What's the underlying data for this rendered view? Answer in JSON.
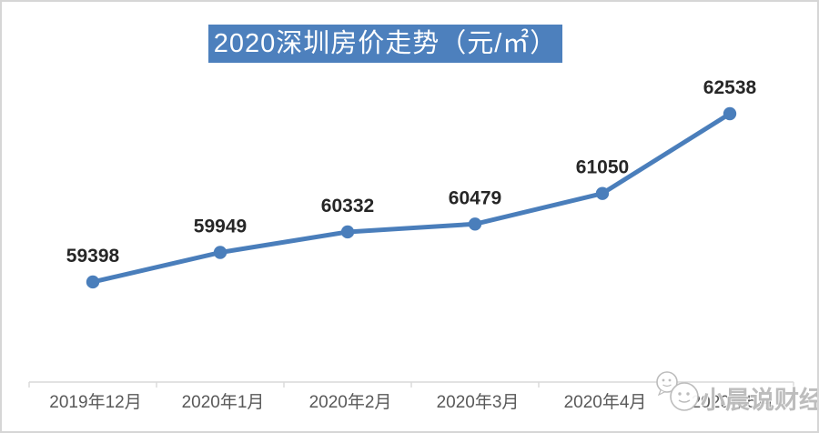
{
  "title": {
    "text": "2020深圳房价走势（元/㎡）"
  },
  "chart_data": {
    "type": "line",
    "title": "2020深圳房价走势（元/㎡）",
    "categories": [
      "2019年12月",
      "2020年1月",
      "2020年2月",
      "2020年3月",
      "2020年4月",
      "2020年5月"
    ],
    "series": [
      {
        "name": "深圳房价",
        "values": [
          59398,
          59949,
          60332,
          60479,
          61050,
          62538
        ]
      }
    ],
    "data_labels": [
      59398,
      59949,
      60332,
      60479,
      61050,
      62538
    ],
    "xlabel": "",
    "ylabel": "",
    "ylim": [
      57530,
      63530
    ],
    "grid": false,
    "legend_position": "none",
    "colors": {
      "line": "#4a7ebb",
      "marker": "#4a7ebb",
      "title_background": "#4d80bd",
      "title_text": "#ffffff",
      "data_label_text": "#262626",
      "axis_line": "#d9d9d9",
      "tick_label_text": "#595959"
    }
  },
  "watermark": {
    "text": "小晨说财经"
  }
}
